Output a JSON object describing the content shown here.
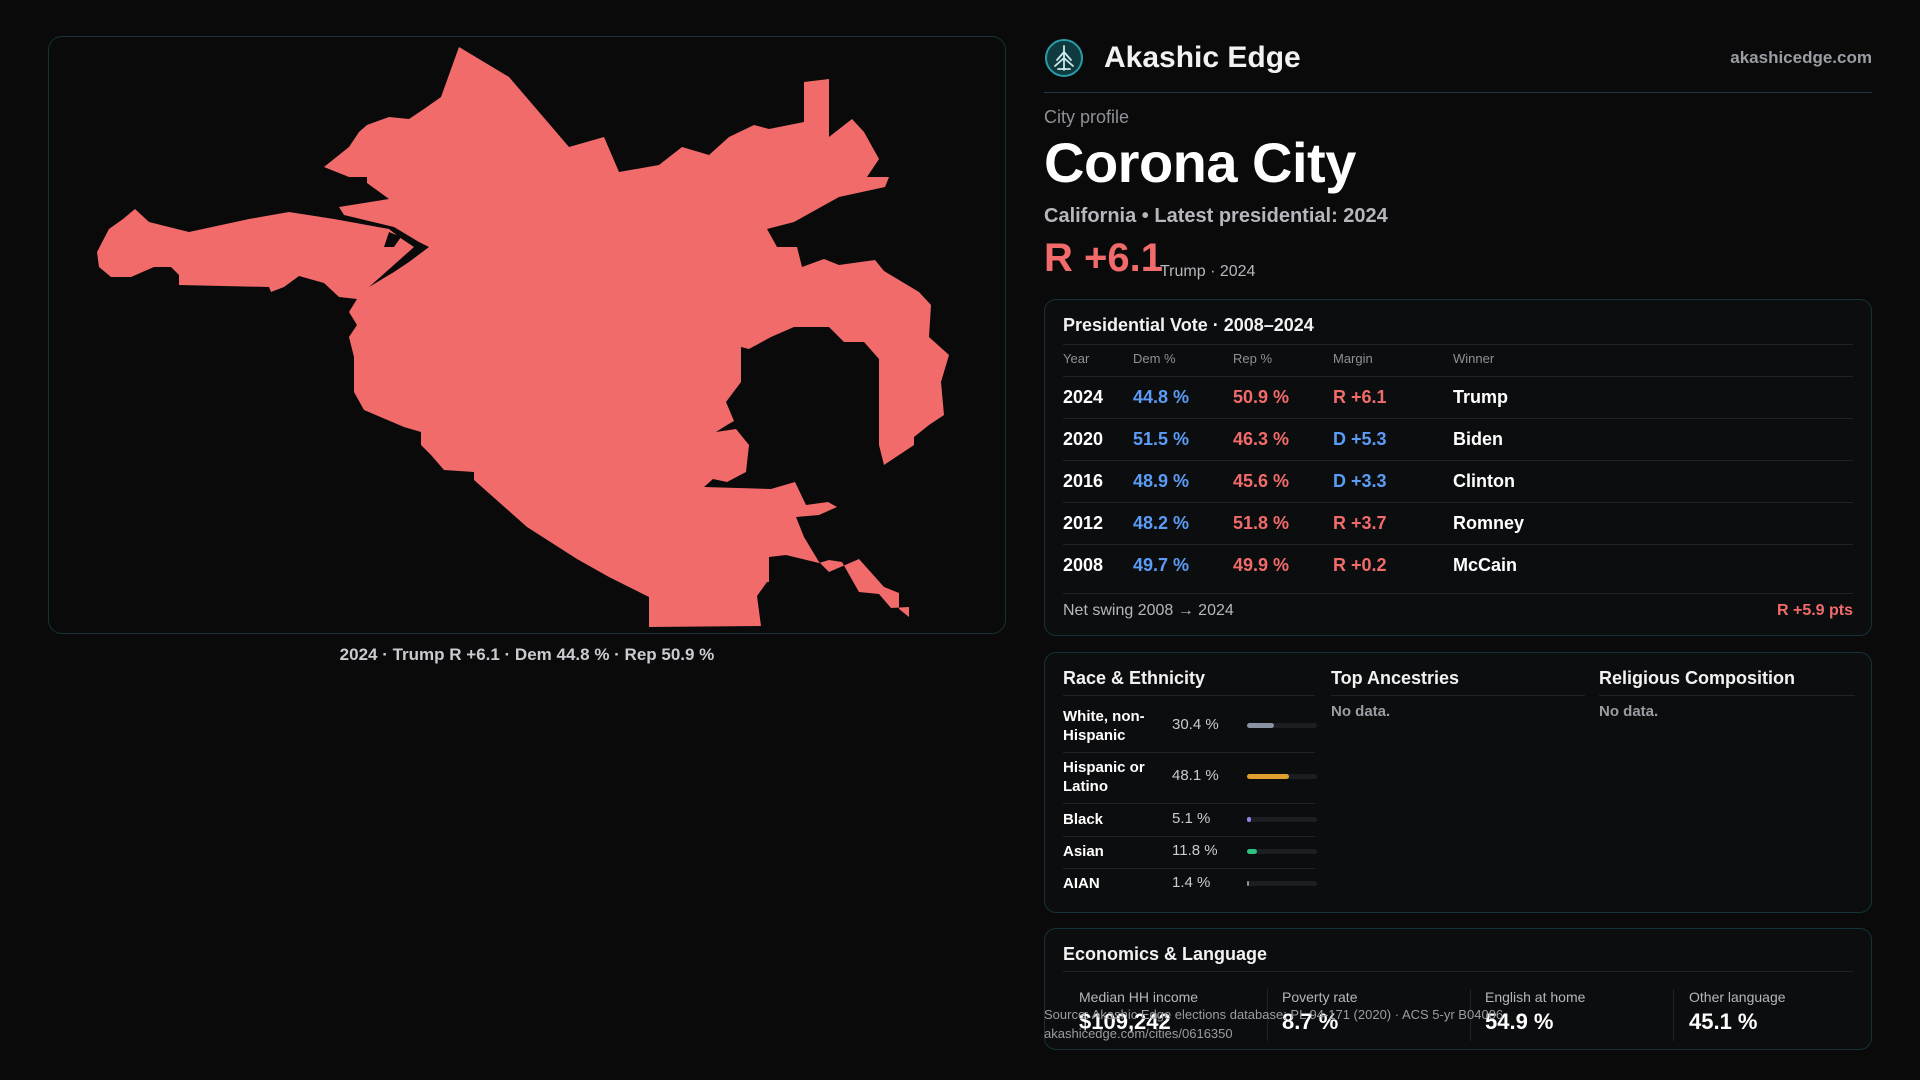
{
  "brand": {
    "name": "Akashic Edge",
    "url": "akashicedge.com",
    "logo_icon": "tree-emblem-icon",
    "accent_color": "#2a9aa8"
  },
  "map": {
    "fill_color": "#f26b6b",
    "caption": "2024 · Trump R +6.1 · Dem 44.8 % · Rep 50.9 %"
  },
  "profile": {
    "eyebrow": "City profile",
    "title": "Corona City",
    "subtitle": "California • Latest presidential: 2024",
    "headline_margin": "R +6.1",
    "headline_winner": "Trump · 2024"
  },
  "colors": {
    "dem": "#5b9cf6",
    "rep": "#f26b6b"
  },
  "vote": {
    "title": "Presidential Vote · 2008–2024",
    "columns": [
      "Year",
      "Dem %",
      "Rep %",
      "Margin",
      "Winner"
    ],
    "rows": [
      {
        "year": "2024",
        "dem": "44.8 %",
        "rep": "50.9 %",
        "margin": "R +6.1",
        "winner": "Trump",
        "party": "rep"
      },
      {
        "year": "2020",
        "dem": "51.5 %",
        "rep": "46.3 %",
        "margin": "D +5.3",
        "winner": "Biden",
        "party": "dem"
      },
      {
        "year": "2016",
        "dem": "48.9 %",
        "rep": "45.6 %",
        "margin": "D +3.3",
        "winner": "Clinton",
        "party": "dem"
      },
      {
        "year": "2012",
        "dem": "48.2 %",
        "rep": "51.8 %",
        "margin": "R +3.7",
        "winner": "Romney",
        "party": "rep"
      },
      {
        "year": "2008",
        "dem": "49.7 %",
        "rep": "49.9 %",
        "margin": "R +0.2",
        "winner": "McCain",
        "party": "rep"
      }
    ],
    "swing_label": "Net swing 2008 → 2024",
    "swing_value": "R +5.9 pts"
  },
  "race": {
    "title": "Race & Ethnicity",
    "rows": [
      {
        "label": "White, non-Hispanic",
        "pct": "30.4 %",
        "share": 0.304,
        "color": "#8a93a3"
      },
      {
        "label": "Hispanic or Latino",
        "pct": "48.1 %",
        "share": 0.481,
        "color": "#e0a030"
      },
      {
        "label": "Black",
        "pct": "5.1 %",
        "share": 0.051,
        "color": "#8f86e6"
      },
      {
        "label": "Asian",
        "pct": "11.8 %",
        "share": 0.118,
        "color": "#2ec27e"
      },
      {
        "label": "AIAN",
        "pct": "1.4 %",
        "share": 0.014,
        "color": "#8a93a3"
      }
    ]
  },
  "ancestries": {
    "title": "Top Ancestries",
    "empty": "No data."
  },
  "religion": {
    "title": "Religious Composition",
    "empty": "No data."
  },
  "econ": {
    "title": "Economics & Language",
    "items": [
      {
        "label": "Median HH income",
        "value": "$109,242"
      },
      {
        "label": "Poverty rate",
        "value": "8.7 %"
      },
      {
        "label": "English at home",
        "value": "54.9 %"
      },
      {
        "label": "Other language",
        "value": "45.1 %"
      }
    ]
  },
  "source": {
    "line1": "Source: Akashic Edge elections database; PL 94-171 (2020) · ACS 5-yr B04006",
    "line2": "akashicedge.com/cities/0616350"
  }
}
